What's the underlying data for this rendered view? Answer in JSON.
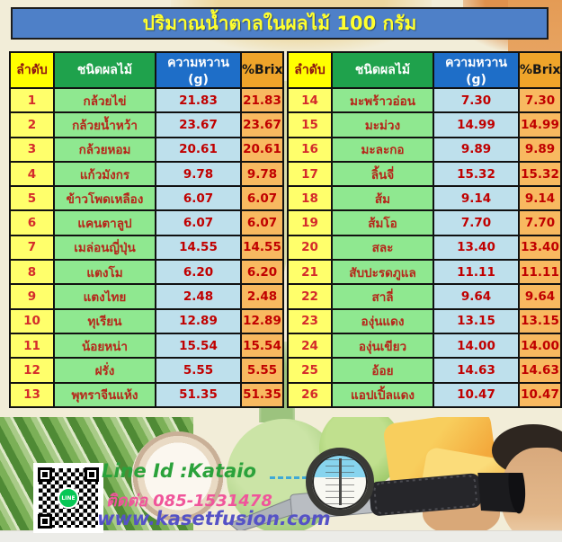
{
  "chart_data": {
    "type": "table",
    "title": "ปริมาณน้ำตาลในผลไม้ 100 กรัม",
    "columns": [
      "ลำดับ",
      "ชนิดผลไม้",
      "ความหวาน (g)",
      "%Brix"
    ],
    "left_rows": [
      {
        "no": "1",
        "fruit": "กล้วยไข่",
        "sweetness": "21.83",
        "brix": "21.83"
      },
      {
        "no": "2",
        "fruit": "กล้วยน้ำหว้า",
        "sweetness": "23.67",
        "brix": "23.67"
      },
      {
        "no": "3",
        "fruit": "กล้วยหอม",
        "sweetness": "20.61",
        "brix": "20.61"
      },
      {
        "no": "4",
        "fruit": "แก้วมังกร",
        "sweetness": "9.78",
        "brix": "9.78"
      },
      {
        "no": "5",
        "fruit": "ข้าวโพดเหลือง",
        "sweetness": "6.07",
        "brix": "6.07"
      },
      {
        "no": "6",
        "fruit": "แคนตาลูป",
        "sweetness": "6.07",
        "brix": "6.07"
      },
      {
        "no": "7",
        "fruit": "เมล่อนญี่ปุ่น",
        "sweetness": "14.55",
        "brix": "14.55"
      },
      {
        "no": "8",
        "fruit": "แตงโม",
        "sweetness": "6.20",
        "brix": "6.20"
      },
      {
        "no": "9",
        "fruit": "แตงไทย",
        "sweetness": "2.48",
        "brix": "2.48"
      },
      {
        "no": "10",
        "fruit": "ทุเรียน",
        "sweetness": "12.89",
        "brix": "12.89"
      },
      {
        "no": "11",
        "fruit": "น้อยหน่า",
        "sweetness": "15.54",
        "brix": "15.54"
      },
      {
        "no": "12",
        "fruit": "ฝรั่ง",
        "sweetness": "5.55",
        "brix": "5.55"
      },
      {
        "no": "13",
        "fruit": "พุทราจีนแห้ง",
        "sweetness": "51.35",
        "brix": "51.35"
      }
    ],
    "right_rows": [
      {
        "no": "14",
        "fruit": "มะพร้าวอ่อน",
        "sweetness": "7.30",
        "brix": "7.30"
      },
      {
        "no": "15",
        "fruit": "มะม่วง",
        "sweetness": "14.99",
        "brix": "14.99"
      },
      {
        "no": "16",
        "fruit": "มะละกอ",
        "sweetness": "9.89",
        "brix": "9.89"
      },
      {
        "no": "17",
        "fruit": "ลิ้นจี่",
        "sweetness": "15.32",
        "brix": "15.32"
      },
      {
        "no": "18",
        "fruit": "ส้ม",
        "sweetness": "9.14",
        "brix": "9.14"
      },
      {
        "no": "19",
        "fruit": "ส้มโอ",
        "sweetness": "7.70",
        "brix": "7.70"
      },
      {
        "no": "20",
        "fruit": "สละ",
        "sweetness": "13.40",
        "brix": "13.40"
      },
      {
        "no": "21",
        "fruit": "สับปะรดภูแล",
        "sweetness": "11.11",
        "brix": "11.11"
      },
      {
        "no": "22",
        "fruit": "สาลี่",
        "sweetness": "9.64",
        "brix": "9.64"
      },
      {
        "no": "23",
        "fruit": "องุ่นแดง",
        "sweetness": "13.15",
        "brix": "13.15"
      },
      {
        "no": "24",
        "fruit": "องุ่นเขียว",
        "sweetness": "14.00",
        "brix": "14.00"
      },
      {
        "no": "25",
        "fruit": "อ้อย",
        "sweetness": "14.63",
        "brix": "14.63"
      },
      {
        "no": "26",
        "fruit": "แอปเปิ้ลแดง",
        "sweetness": "10.47",
        "brix": "10.47"
      }
    ]
  },
  "contact": {
    "line_id": "Line Id :Kataio",
    "phone": "ติดต่อ 085-1531478",
    "website": "www.kasetfusion.com",
    "line_badge": "LINE"
  },
  "colors": {
    "title_bg": "#4E80C8",
    "title_text": "#FFFF2E",
    "header_no_bg": "#FFFF00",
    "header_fruit_bg": "#1FA24C",
    "header_sweetness_bg": "#1E6EC8",
    "header_brix_bg": "#EFA42A",
    "cell_no_bg": "#FFFF6B",
    "cell_fruit_bg": "#8FE890",
    "cell_sweetness_bg": "#BEE0EC",
    "cell_brix_bg": "#F8B960",
    "value_text": "#C00000",
    "line_green": "#2BA23B",
    "phone_pink": "#F0559B",
    "web_blue": "#5552C6"
  }
}
